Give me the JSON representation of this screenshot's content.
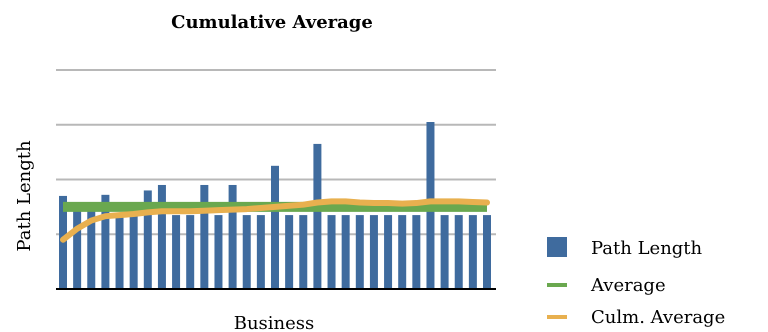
{
  "chart_data": {
    "type": "bar",
    "title": "Cumulative Average",
    "xlabel": "Business",
    "ylabel": "Path Length",
    "grid": true,
    "legend_position": "right",
    "ylim": [
      0,
      4
    ],
    "series": [
      {
        "name": "Path Length",
        "type": "bar",
        "color": "#3F6B9E",
        "values": [
          1.7,
          1.45,
          1.45,
          1.72,
          1.35,
          1.35,
          1.8,
          1.9,
          1.35,
          1.35,
          1.9,
          1.35,
          1.9,
          1.35,
          1.35,
          2.25,
          1.35,
          1.35,
          2.65,
          1.35,
          1.35,
          1.35,
          1.35,
          1.35,
          1.35,
          1.35,
          3.05,
          1.35,
          1.35,
          1.35,
          1.35
        ]
      },
      {
        "name": "Average",
        "type": "line",
        "color": "#6AA84F",
        "values": [
          1.5,
          1.5,
          1.5,
          1.5,
          1.5,
          1.5,
          1.5,
          1.5,
          1.5,
          1.5,
          1.5,
          1.5,
          1.5,
          1.5,
          1.5,
          1.5,
          1.5,
          1.5,
          1.5,
          1.5,
          1.5,
          1.5,
          1.5,
          1.5,
          1.5,
          1.5,
          1.5,
          1.5,
          1.5,
          1.5,
          1.5
        ]
      },
      {
        "name": "Culm. Average",
        "type": "line",
        "color": "#E8B04F",
        "values": [
          0.9,
          1.1,
          1.25,
          1.33,
          1.35,
          1.37,
          1.4,
          1.42,
          1.42,
          1.42,
          1.43,
          1.44,
          1.45,
          1.46,
          1.48,
          1.5,
          1.52,
          1.54,
          1.58,
          1.6,
          1.6,
          1.58,
          1.57,
          1.57,
          1.56,
          1.57,
          1.6,
          1.6,
          1.6,
          1.59,
          1.58
        ]
      }
    ]
  }
}
